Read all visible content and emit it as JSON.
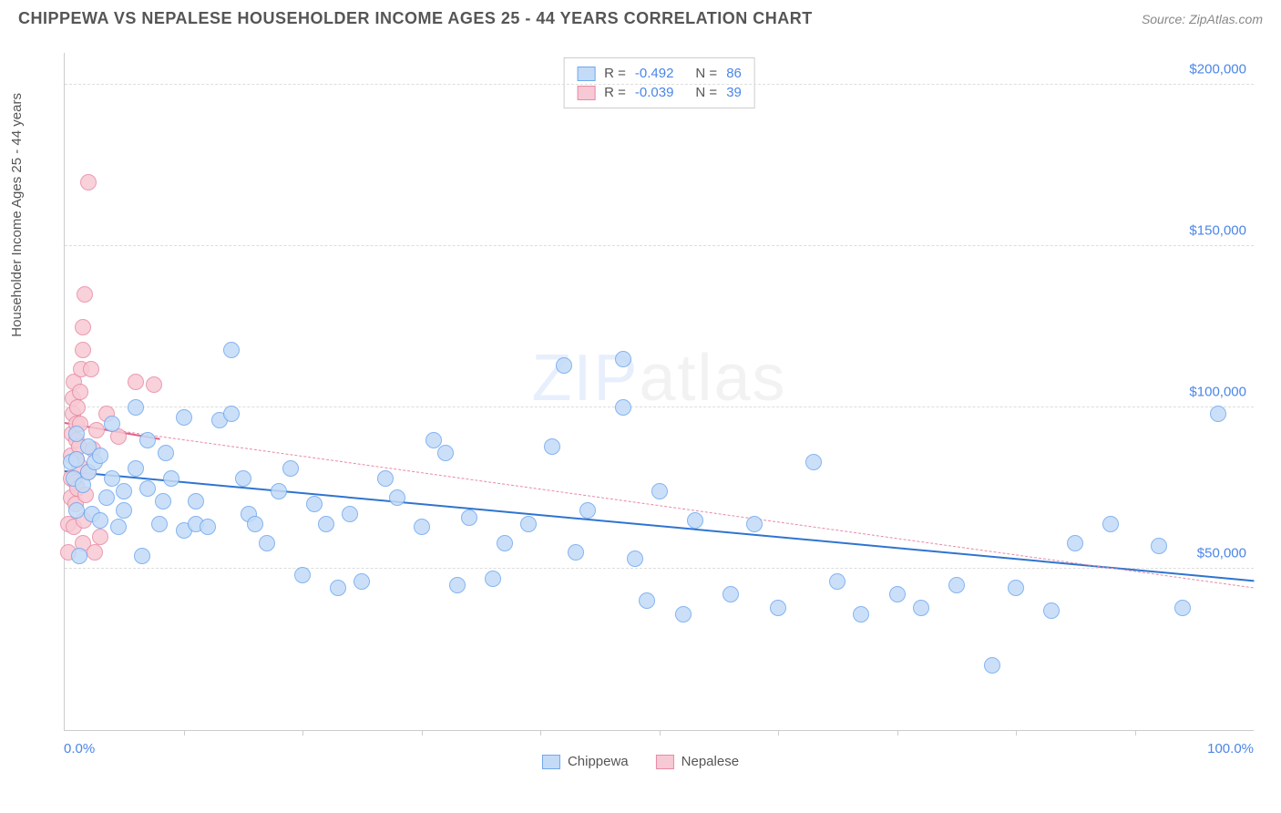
{
  "header": {
    "title": "CHIPPEWA VS NEPALESE HOUSEHOLDER INCOME AGES 25 - 44 YEARS CORRELATION CHART",
    "source": "Source: ZipAtlas.com"
  },
  "watermark": {
    "bold": "ZIP",
    "light": "atlas"
  },
  "chart": {
    "type": "scatter",
    "ylabel": "Householder Income Ages 25 - 44 years",
    "xlim": [
      0,
      100
    ],
    "ylim": [
      0,
      210000
    ],
    "x_axis_labels": {
      "left": "0.0%",
      "right": "100.0%"
    },
    "x_ticks_pct": [
      10,
      20,
      30,
      40,
      50,
      60,
      70,
      80,
      90
    ],
    "y_gridlines": [
      {
        "value": 50000,
        "label": "$50,000"
      },
      {
        "value": 100000,
        "label": "$100,000"
      },
      {
        "value": 150000,
        "label": "$150,000"
      },
      {
        "value": 200000,
        "label": "$200,000"
      }
    ],
    "background_color": "#ffffff",
    "grid_color": "#dddddd",
    "axis_color": "#cccccc",
    "tick_label_color": "#4a86e8",
    "marker_radius": 9,
    "marker_border_width": 1,
    "series": [
      {
        "name": "Chippewa",
        "fill": "#c3dbf7",
        "stroke": "#6fa8ef",
        "R": "-0.492",
        "N": "86",
        "regression": {
          "x1": 0,
          "y1": 80000,
          "x2": 100,
          "y2": 46000,
          "dashed": false,
          "color": "#2f74d0",
          "width": 2.5
        },
        "points": [
          [
            0.5,
            83000
          ],
          [
            0.8,
            78000
          ],
          [
            1,
            84000
          ],
          [
            1,
            92000
          ],
          [
            1,
            68000
          ],
          [
            1.2,
            54000
          ],
          [
            1.5,
            76000
          ],
          [
            2,
            80000
          ],
          [
            2,
            88000
          ],
          [
            2.3,
            67000
          ],
          [
            2.5,
            83000
          ],
          [
            3,
            85000
          ],
          [
            3,
            65000
          ],
          [
            3.5,
            72000
          ],
          [
            4,
            95000
          ],
          [
            4,
            78000
          ],
          [
            4.5,
            63000
          ],
          [
            5,
            68000
          ],
          [
            5,
            74000
          ],
          [
            6,
            100000
          ],
          [
            6,
            81000
          ],
          [
            6.5,
            54000
          ],
          [
            7,
            90000
          ],
          [
            7,
            75000
          ],
          [
            8,
            64000
          ],
          [
            8.3,
            71000
          ],
          [
            8.5,
            86000
          ],
          [
            9,
            78000
          ],
          [
            10,
            62000
          ],
          [
            10,
            97000
          ],
          [
            11,
            71000
          ],
          [
            11,
            64000
          ],
          [
            12,
            63000
          ],
          [
            13,
            96000
          ],
          [
            14,
            118000
          ],
          [
            14,
            98000
          ],
          [
            15,
            78000
          ],
          [
            15.5,
            67000
          ],
          [
            16,
            64000
          ],
          [
            17,
            58000
          ],
          [
            18,
            74000
          ],
          [
            19,
            81000
          ],
          [
            20,
            48000
          ],
          [
            21,
            70000
          ],
          [
            22,
            64000
          ],
          [
            23,
            44000
          ],
          [
            24,
            67000
          ],
          [
            25,
            46000
          ],
          [
            27,
            78000
          ],
          [
            28,
            72000
          ],
          [
            30,
            63000
          ],
          [
            31,
            90000
          ],
          [
            32,
            86000
          ],
          [
            33,
            45000
          ],
          [
            34,
            66000
          ],
          [
            36,
            47000
          ],
          [
            37,
            58000
          ],
          [
            39,
            64000
          ],
          [
            41,
            88000
          ],
          [
            42,
            113000
          ],
          [
            43,
            55000
          ],
          [
            44,
            68000
          ],
          [
            47,
            115000
          ],
          [
            47,
            100000
          ],
          [
            48,
            53000
          ],
          [
            49,
            40000
          ],
          [
            50,
            74000
          ],
          [
            52,
            36000
          ],
          [
            53,
            65000
          ],
          [
            56,
            42000
          ],
          [
            58,
            64000
          ],
          [
            60,
            38000
          ],
          [
            63,
            83000
          ],
          [
            65,
            46000
          ],
          [
            67,
            36000
          ],
          [
            70,
            42000
          ],
          [
            72,
            38000
          ],
          [
            75,
            45000
          ],
          [
            78,
            20000
          ],
          [
            80,
            44000
          ],
          [
            83,
            37000
          ],
          [
            85,
            58000
          ],
          [
            88,
            64000
          ],
          [
            92,
            57000
          ],
          [
            94,
            38000
          ],
          [
            97,
            98000
          ]
        ]
      },
      {
        "name": "Nepalese",
        "fill": "#f7c9d4",
        "stroke": "#e88aa4",
        "R": "-0.039",
        "N": "39",
        "regression": {
          "x1": 0,
          "y1": 95000,
          "x2": 100,
          "y2": 44000,
          "dashed": true,
          "color": "#e88aa4",
          "width": 1.5
        },
        "regression_solid": {
          "x1": 0,
          "y1": 95000,
          "x2": 8,
          "y2": 90000,
          "dashed": false,
          "color": "#e06088",
          "width": 2.5
        },
        "points": [
          [
            0.3,
            55000
          ],
          [
            0.3,
            64000
          ],
          [
            0.5,
            72000
          ],
          [
            0.5,
            78000
          ],
          [
            0.5,
            85000
          ],
          [
            0.6,
            92000
          ],
          [
            0.7,
            98000
          ],
          [
            0.7,
            103000
          ],
          [
            0.8,
            63000
          ],
          [
            0.8,
            108000
          ],
          [
            0.9,
            70000
          ],
          [
            0.9,
            77000
          ],
          [
            1.0,
            84000
          ],
          [
            1.0,
            90000
          ],
          [
            1.0,
            95000
          ],
          [
            1.1,
            100000
          ],
          [
            1.1,
            75000
          ],
          [
            1.2,
            82000
          ],
          [
            1.2,
            88000
          ],
          [
            1.3,
            95000
          ],
          [
            1.3,
            105000
          ],
          [
            1.4,
            112000
          ],
          [
            1.5,
            58000
          ],
          [
            1.5,
            118000
          ],
          [
            1.5,
            125000
          ],
          [
            1.6,
            65000
          ],
          [
            1.7,
            135000
          ],
          [
            1.8,
            73000
          ],
          [
            2.0,
            80000
          ],
          [
            2.0,
            170000
          ],
          [
            2.2,
            112000
          ],
          [
            2.4,
            87000
          ],
          [
            2.5,
            55000
          ],
          [
            2.7,
            93000
          ],
          [
            3.0,
            60000
          ],
          [
            3.5,
            98000
          ],
          [
            4.5,
            91000
          ],
          [
            6.0,
            108000
          ],
          [
            7.5,
            107000
          ]
        ]
      }
    ],
    "legend_bottom": [
      {
        "label": "Chippewa",
        "fill": "#c3dbf7",
        "stroke": "#6fa8ef"
      },
      {
        "label": "Nepalese",
        "fill": "#f7c9d4",
        "stroke": "#e88aa4"
      }
    ]
  }
}
